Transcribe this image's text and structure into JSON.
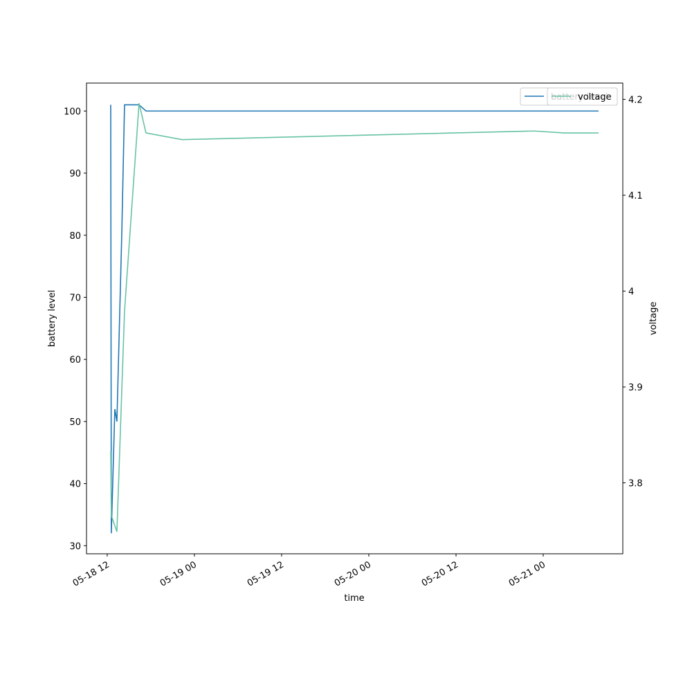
{
  "chart_data": {
    "type": "line",
    "x_label": "time",
    "y_label": "battery level",
    "y2_label": "voltage",
    "x": null,
    "series": [
      {
        "name": "battery level",
        "color": "#1f77b4",
        "x": [
          "05-18 12:29",
          "05-18 12:34",
          "05-18 13:03",
          "05-18 13:20",
          "05-18 14:00",
          "05-18 14:23",
          "05-18 16:23",
          "05-18 17:20",
          "05-21 07:37"
        ],
        "values": [
          101,
          32,
          52,
          50,
          80,
          101,
          101,
          100,
          100
        ]
      },
      {
        "name": "voltage",
        "color": "#66c2a5",
        "axis": "y2",
        "x": [
          "05-18 12:29",
          "05-18 12:34",
          "05-18 13:20",
          "05-18 14:23",
          "05-18 16:23",
          "05-18 17:20",
          "05-18 22:17",
          "05-20 22:46",
          "05-21 02:51",
          "05-21 07:37"
        ],
        "values": [
          3.833,
          3.766,
          3.749,
          3.979,
          4.196,
          4.165,
          4.158,
          4.167,
          4.165,
          4.165
        ]
      }
    ],
    "xlim": [
      "05-18 09:09",
      "05-21 10:57"
    ],
    "xticks": [
      {
        "value": "05-18 12:00",
        "label": "05-18 12"
      },
      {
        "value": "05-19 00:00",
        "label": "05-19 00"
      },
      {
        "value": "05-19 12:00",
        "label": "05-19 12"
      },
      {
        "value": "05-20 00:00",
        "label": "05-20 00"
      },
      {
        "value": "05-20 12:00",
        "label": "05-20 12"
      },
      {
        "value": "05-21 00:00",
        "label": "05-21 00"
      }
    ],
    "ylim": [
      28.7,
      104.5
    ],
    "yticks": [
      30,
      40,
      50,
      60,
      70,
      80,
      90,
      100
    ],
    "y2lim": [
      3.726,
      4.217
    ],
    "y2ticks": [
      3.8,
      3.9,
      4.0,
      4.1,
      4.2
    ],
    "legend": "upper right",
    "grid": false
  }
}
